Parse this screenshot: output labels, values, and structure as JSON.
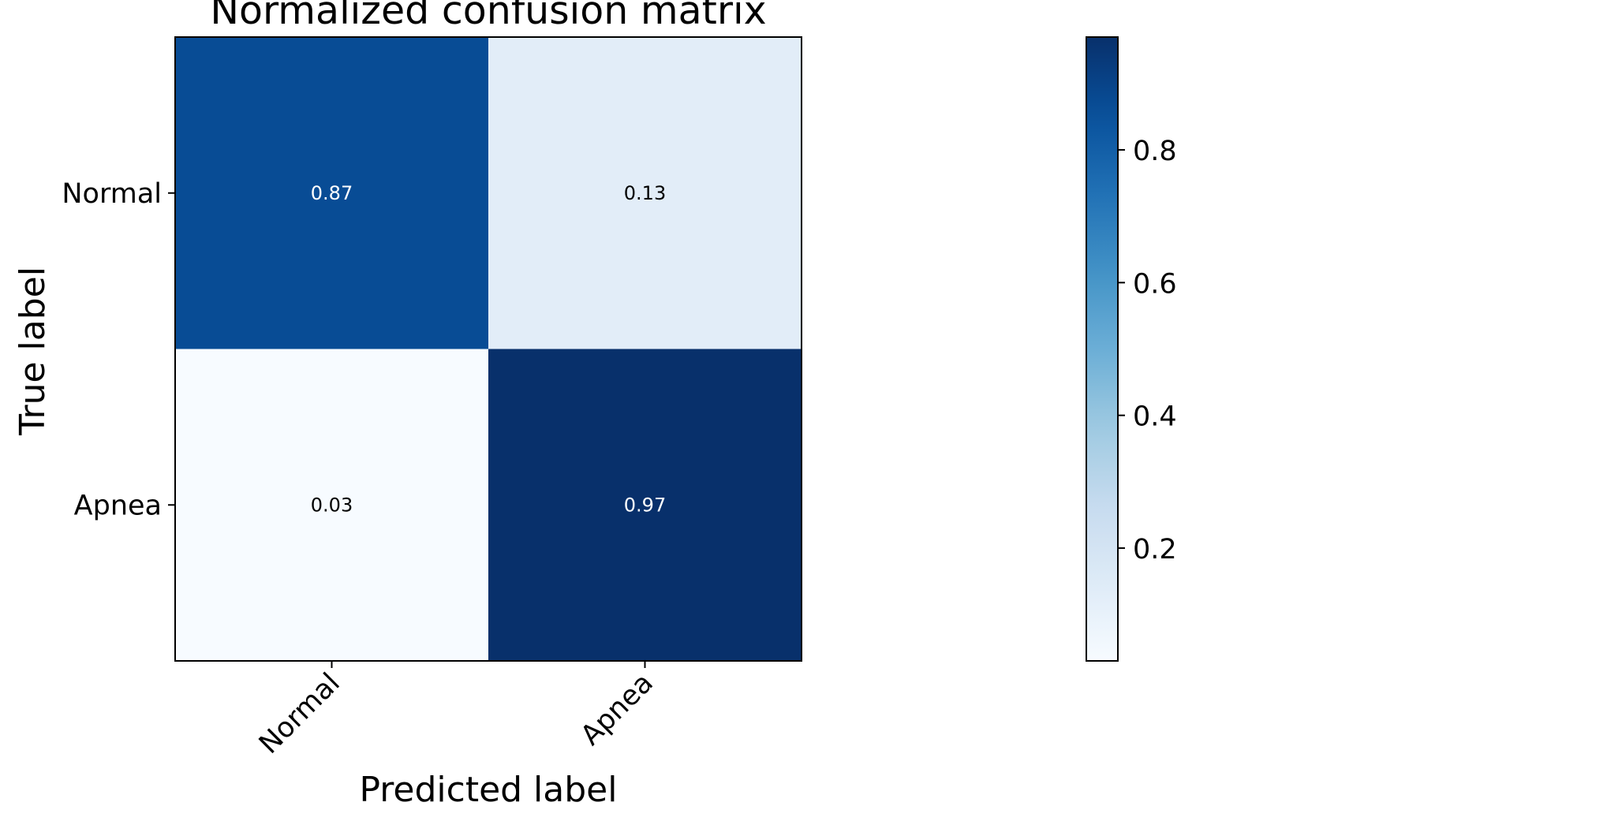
{
  "chart_data": {
    "type": "heatmap",
    "title": "Normalized confusion matrix",
    "xlabel": "Predicted label",
    "ylabel": "True label",
    "x_categories": [
      "Normal",
      "Apnea"
    ],
    "y_categories": [
      "Normal",
      "Apnea"
    ],
    "values": [
      [
        0.87,
        0.13
      ],
      [
        0.03,
        0.97
      ]
    ],
    "cell_labels": [
      [
        "0.87",
        "0.13"
      ],
      [
        "0.03",
        "0.97"
      ]
    ],
    "colormap": "Blues",
    "colorbar": {
      "range": [
        0.03,
        0.97
      ],
      "ticks": [
        0.2,
        0.4,
        0.6,
        0.8
      ],
      "tick_labels": [
        "0.2",
        "0.4",
        "0.6",
        "0.8"
      ]
    },
    "grid": false
  }
}
